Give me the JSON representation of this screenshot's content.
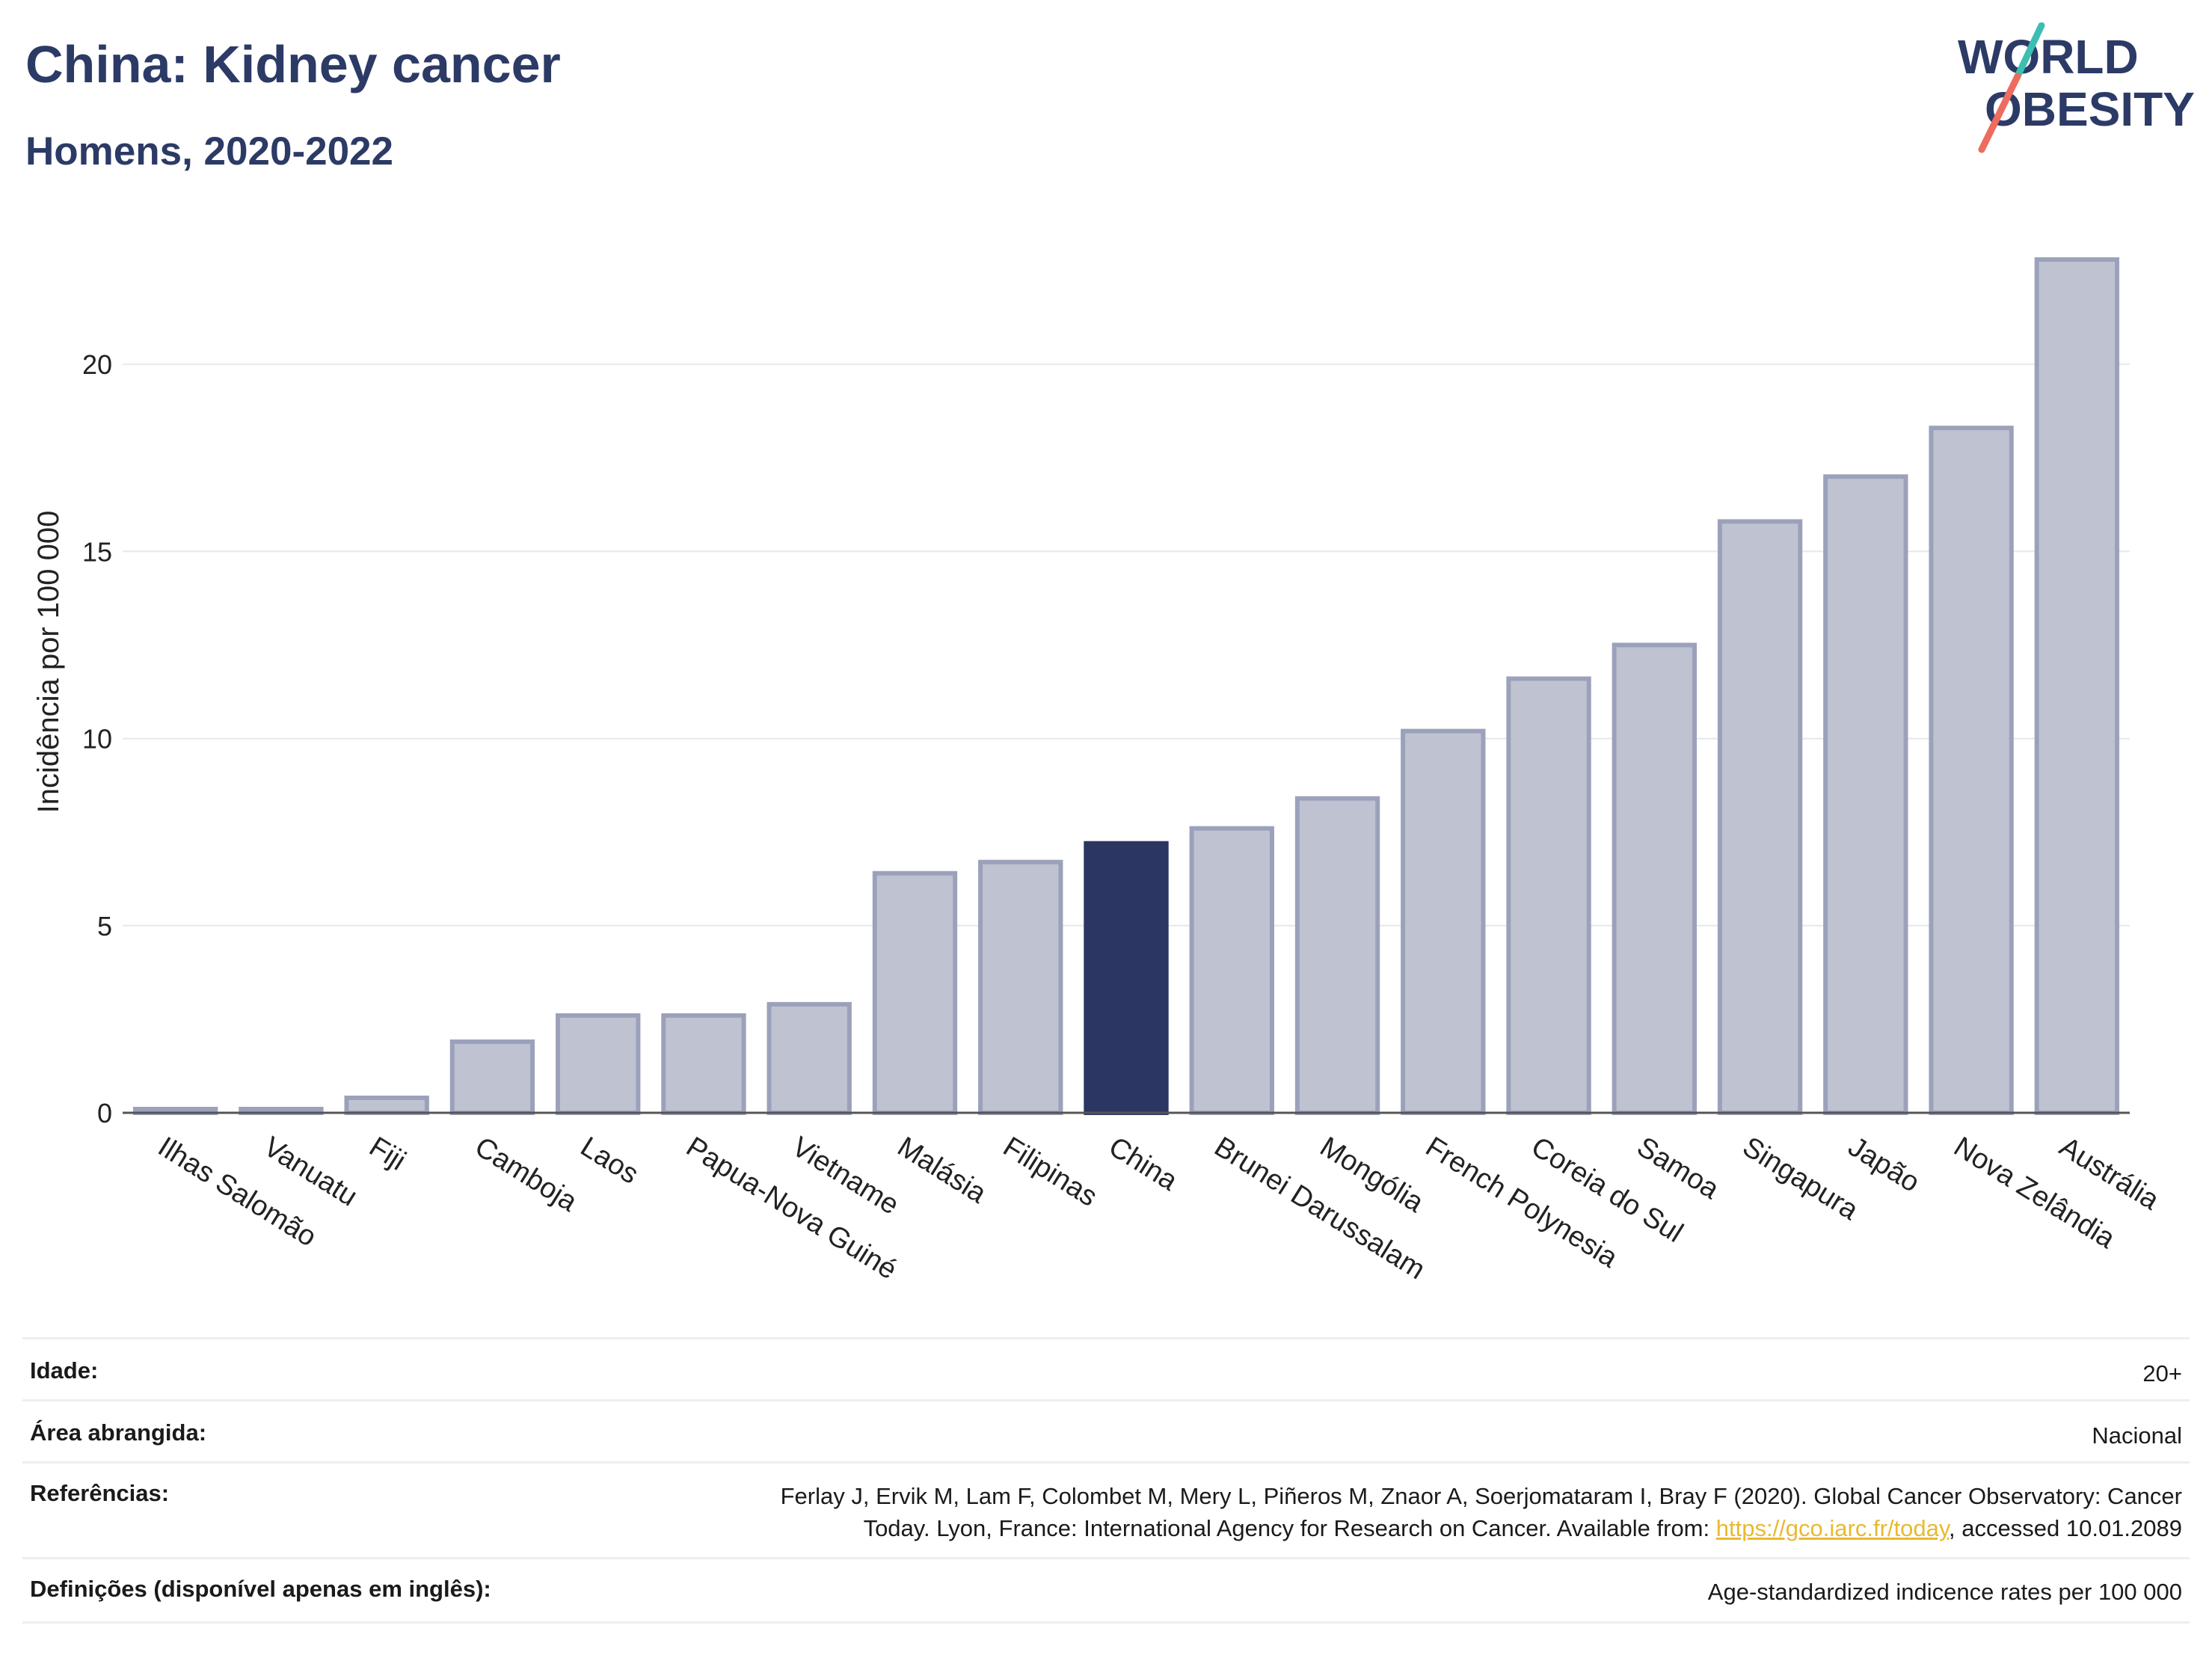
{
  "header": {
    "title": "China: Kidney cancer",
    "subtitle": "Homens, 2020-2022",
    "logo_line1": "WORLD",
    "logo_line2": "OBESITY"
  },
  "colors": {
    "title": "#2c3a66",
    "bar": "#bfc3d1",
    "bar_border": "#9ca1bb",
    "highlight": "#2b3663",
    "grid": "#e6e8ee",
    "link": "#e8b931",
    "logo_teal": "#3bbfb3",
    "logo_coral": "#ee6b5f"
  },
  "chart_data": {
    "type": "bar",
    "ylabel": "Incidência por 100 000",
    "ylim": [
      0,
      23.5
    ],
    "yticks": [
      0,
      5,
      10,
      15,
      20
    ],
    "grid": true,
    "highlight": "China",
    "categories": [
      "Ilhas Salomão",
      "Vanuatu",
      "Fiji",
      "Camboja",
      "Laos",
      "Papua-Nova Guiné",
      "Vietname",
      "Malásia",
      "Filipinas",
      "China",
      "Brunei Darussalam",
      "Mongólia",
      "French Polynesia",
      "Coreia do Sul",
      "Samoa",
      "Singapura",
      "Japão",
      "Nova Zelândia",
      "Austrália"
    ],
    "values": [
      0.1,
      0.1,
      0.4,
      1.9,
      2.6,
      2.6,
      2.9,
      6.4,
      6.7,
      7.2,
      7.6,
      8.4,
      10.2,
      11.6,
      12.5,
      15.8,
      17.0,
      18.3,
      22.8
    ]
  },
  "meta": {
    "age_label": "Idade:",
    "age_value": "20+",
    "area_label": "Área abrangida:",
    "area_value": "Nacional",
    "ref_label": "Referências:",
    "ref_line1": "Ferlay J, Ervik M, Lam F, Colombet M, Mery L, Piñeros M, Znaor A, Soerjomataram I, Bray F (2020). Global Cancer Observatory: Cancer",
    "ref_line2_pre": "Today. Lyon, France: International Agency for Research on Cancer. Available from: ",
    "ref_link": "https://gco.iarc.fr/today",
    "ref_line2_post": ", accessed 10.01.2089",
    "def_label": "Definições (disponível apenas em inglês):",
    "def_value": "Age-standardized indicence rates per 100 000"
  }
}
